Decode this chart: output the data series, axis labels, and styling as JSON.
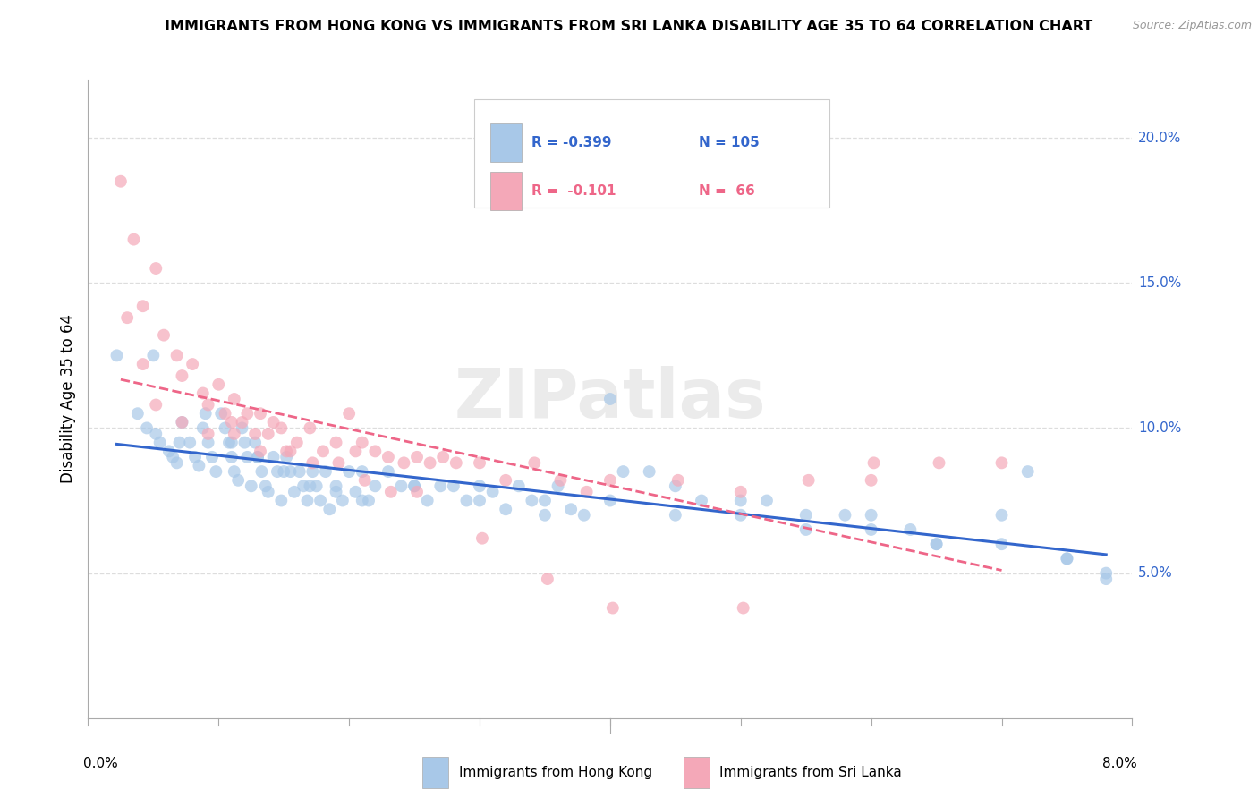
{
  "title": "IMMIGRANTS FROM HONG KONG VS IMMIGRANTS FROM SRI LANKA DISABILITY AGE 35 TO 64 CORRELATION CHART",
  "source_text": "Source: ZipAtlas.com",
  "ylabel": "Disability Age 35 to 64",
  "watermark": "ZIPatlas",
  "xlim": [
    0.0,
    8.0
  ],
  "ylim": [
    0.0,
    22.0
  ],
  "yticks": [
    5.0,
    10.0,
    15.0,
    20.0
  ],
  "ytick_labels": [
    "5.0%",
    "10.0%",
    "15.0%",
    "20.0%"
  ],
  "hk_color": "#a8c8e8",
  "sl_color": "#f4a8b8",
  "hk_line_color": "#3366cc",
  "sl_line_color": "#ee6688",
  "legend_label_hk": "Immigrants from Hong Kong",
  "legend_label_sl": "Immigrants from Sri Lanka",
  "legend_r_hk": "R = -0.399",
  "legend_n_hk": "N = 105",
  "legend_r_sl": "R =  -0.101",
  "legend_n_sl": "N =  66",
  "hk_x": [
    0.22,
    0.38,
    0.45,
    0.52,
    0.55,
    0.62,
    0.65,
    0.68,
    0.72,
    0.78,
    0.82,
    0.85,
    0.88,
    0.92,
    0.95,
    0.98,
    1.02,
    1.05,
    1.08,
    1.1,
    1.12,
    1.15,
    1.18,
    1.2,
    1.22,
    1.25,
    1.28,
    1.3,
    1.33,
    1.36,
    1.38,
    1.42,
    1.45,
    1.48,
    1.52,
    1.55,
    1.58,
    1.62,
    1.65,
    1.68,
    1.72,
    1.75,
    1.78,
    1.82,
    1.85,
    1.9,
    1.95,
    2.0,
    2.05,
    2.1,
    2.15,
    2.2,
    2.3,
    2.4,
    2.5,
    2.6,
    2.7,
    2.8,
    2.9,
    3.0,
    3.1,
    3.2,
    3.3,
    3.4,
    3.5,
    3.6,
    3.7,
    3.8,
    4.0,
    4.1,
    4.3,
    4.5,
    4.7,
    5.0,
    5.2,
    5.5,
    5.8,
    6.0,
    6.3,
    6.5,
    7.0,
    7.2,
    7.5,
    7.8,
    0.5,
    0.7,
    0.9,
    1.1,
    1.3,
    1.5,
    1.7,
    1.9,
    2.1,
    2.5,
    3.0,
    3.5,
    4.0,
    4.5,
    5.0,
    5.5,
    6.0,
    6.5,
    7.0,
    7.5,
    7.8
  ],
  "hk_y": [
    12.5,
    10.5,
    10.0,
    9.8,
    9.5,
    9.2,
    9.0,
    8.8,
    10.2,
    9.5,
    9.0,
    8.7,
    10.0,
    9.5,
    9.0,
    8.5,
    10.5,
    10.0,
    9.5,
    9.0,
    8.5,
    8.2,
    10.0,
    9.5,
    9.0,
    8.0,
    9.5,
    9.0,
    8.5,
    8.0,
    7.8,
    9.0,
    8.5,
    7.5,
    9.0,
    8.5,
    7.8,
    8.5,
    8.0,
    7.5,
    8.5,
    8.0,
    7.5,
    8.5,
    7.2,
    8.0,
    7.5,
    8.5,
    7.8,
    8.5,
    7.5,
    8.0,
    8.5,
    8.0,
    8.0,
    7.5,
    8.0,
    8.0,
    7.5,
    8.0,
    7.8,
    7.2,
    8.0,
    7.5,
    7.5,
    8.0,
    7.2,
    7.0,
    11.0,
    8.5,
    8.5,
    8.0,
    7.5,
    7.0,
    7.5,
    6.5,
    7.0,
    7.0,
    6.5,
    6.0,
    7.0,
    8.5,
    5.5,
    5.0,
    12.5,
    9.5,
    10.5,
    9.5,
    9.0,
    8.5,
    8.0,
    7.8,
    7.5,
    8.0,
    7.5,
    7.0,
    7.5,
    7.0,
    7.5,
    7.0,
    6.5,
    6.0,
    6.0,
    5.5,
    4.8
  ],
  "sl_x": [
    0.25,
    0.35,
    0.42,
    0.52,
    0.58,
    0.68,
    0.72,
    0.8,
    0.88,
    0.92,
    1.0,
    1.05,
    1.1,
    1.12,
    1.18,
    1.22,
    1.28,
    1.32,
    1.38,
    1.42,
    1.48,
    1.55,
    1.6,
    1.7,
    1.8,
    1.9,
    2.0,
    2.05,
    2.1,
    2.2,
    2.3,
    2.42,
    2.52,
    2.62,
    2.72,
    2.82,
    3.0,
    3.2,
    3.42,
    3.62,
    3.82,
    4.0,
    4.52,
    5.0,
    5.52,
    6.0,
    6.52,
    7.0,
    0.3,
    0.42,
    0.52,
    0.72,
    0.92,
    1.12,
    1.32,
    1.52,
    1.72,
    1.92,
    2.12,
    2.32,
    2.52,
    3.02,
    3.52,
    4.02,
    5.02,
    6.02
  ],
  "sl_y": [
    18.5,
    16.5,
    14.2,
    15.5,
    13.2,
    12.5,
    11.8,
    12.2,
    11.2,
    10.8,
    11.5,
    10.5,
    10.2,
    11.0,
    10.2,
    10.5,
    9.8,
    10.5,
    9.8,
    10.2,
    10.0,
    9.2,
    9.5,
    10.0,
    9.2,
    9.5,
    10.5,
    9.2,
    9.5,
    9.2,
    9.0,
    8.8,
    9.0,
    8.8,
    9.0,
    8.8,
    8.8,
    8.2,
    8.8,
    8.2,
    7.8,
    8.2,
    8.2,
    7.8,
    8.2,
    8.2,
    8.8,
    8.8,
    13.8,
    12.2,
    10.8,
    10.2,
    9.8,
    9.8,
    9.2,
    9.2,
    8.8,
    8.8,
    8.2,
    7.8,
    7.8,
    6.2,
    4.8,
    3.8,
    3.8,
    8.8
  ]
}
